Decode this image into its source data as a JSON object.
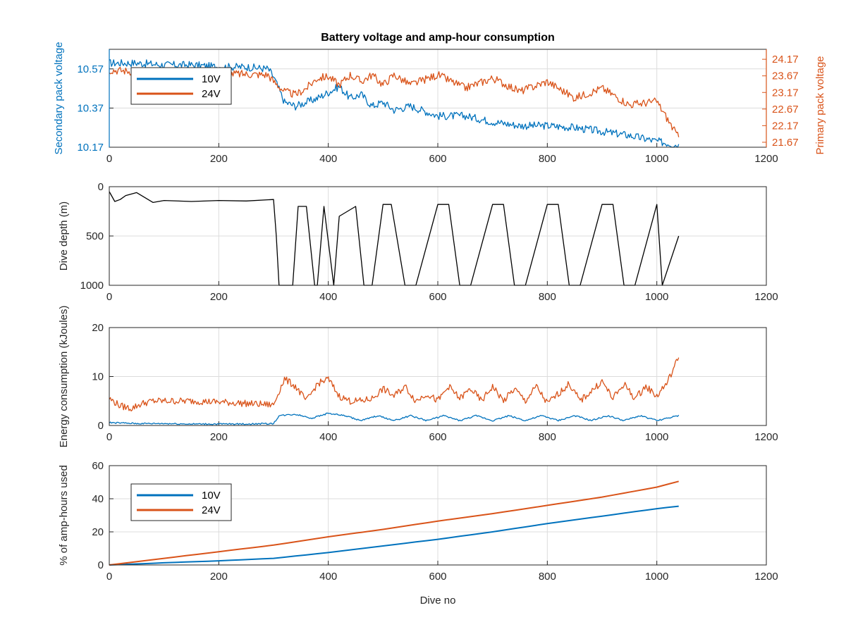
{
  "colors": {
    "c10v": "#0072BD",
    "c24v": "#D95319",
    "depth": "#000000",
    "axis": "#262626",
    "grid": "#dcdcdc"
  },
  "chart_data": [
    {
      "type": "line",
      "title": "Battery voltage and amp-hour consumption",
      "xlabel": "",
      "ylabel": "Secondary pack voltage",
      "ylabel_right": "Primary pack voltage",
      "xlim": [
        0,
        1200
      ],
      "ylim": [
        10.17,
        10.67
      ],
      "ylim_right": [
        21.52,
        24.47
      ],
      "xticks": [
        "0",
        "200",
        "400",
        "600",
        "800",
        "1000",
        "1200"
      ],
      "yticks": [
        "10.17",
        "10.37",
        "10.57"
      ],
      "yticks_right": [
        "21.67",
        "22.17",
        "22.67",
        "23.17",
        "23.67",
        "24.17"
      ],
      "grid": true,
      "legend": {
        "placement": "top-left",
        "entries": [
          "10V",
          "24V"
        ]
      },
      "series": [
        {
          "name": "10V",
          "axis": "left",
          "x": [
            0,
            50,
            100,
            150,
            200,
            250,
            290,
            300,
            320,
            340,
            360,
            380,
            400,
            420,
            440,
            460,
            480,
            500,
            520,
            550,
            600,
            650,
            700,
            750,
            800,
            850,
            900,
            950,
            1000,
            1040
          ],
          "values": [
            10.6,
            10.6,
            10.59,
            10.59,
            10.58,
            10.58,
            10.57,
            10.53,
            10.4,
            10.38,
            10.4,
            10.42,
            10.45,
            10.48,
            10.42,
            10.44,
            10.38,
            10.4,
            10.36,
            10.38,
            10.33,
            10.33,
            10.3,
            10.28,
            10.28,
            10.27,
            10.25,
            10.23,
            10.2,
            10.18
          ]
        },
        {
          "name": "24V",
          "axis": "right",
          "x": [
            0,
            50,
            100,
            150,
            200,
            250,
            290,
            300,
            320,
            340,
            360,
            380,
            400,
            420,
            440,
            460,
            480,
            500,
            520,
            550,
            600,
            650,
            700,
            750,
            800,
            850,
            900,
            950,
            1000,
            1040
          ],
          "values": [
            23.85,
            23.8,
            23.78,
            23.76,
            23.74,
            23.72,
            23.7,
            23.5,
            23.2,
            23.1,
            23.3,
            23.6,
            23.65,
            23.4,
            23.7,
            23.5,
            23.7,
            23.4,
            23.7,
            23.4,
            23.7,
            23.3,
            23.6,
            23.2,
            23.5,
            23.0,
            23.3,
            22.8,
            22.9,
            21.8
          ]
        }
      ]
    },
    {
      "type": "line",
      "xlabel": "",
      "ylabel": "Dive depth (m)",
      "xlim": [
        0,
        1200
      ],
      "ylim": [
        0,
        1000
      ],
      "y_reversed": true,
      "xticks": [
        "0",
        "200",
        "400",
        "600",
        "800",
        "1000",
        "1200"
      ],
      "yticks": [
        "0",
        "500",
        "1000"
      ],
      "grid": true,
      "series": [
        {
          "x": [
            0,
            10,
            20,
            30,
            50,
            80,
            100,
            150,
            200,
            250,
            300,
            305,
            310,
            315,
            335,
            345,
            360,
            375,
            380,
            392,
            410,
            420,
            450,
            465,
            480,
            500,
            515,
            540,
            560,
            600,
            620,
            640,
            660,
            700,
            720,
            740,
            760,
            800,
            820,
            840,
            860,
            900,
            920,
            940,
            960,
            1000,
            1010,
            1040
          ],
          "values": [
            50,
            150,
            130,
            90,
            60,
            160,
            140,
            150,
            140,
            145,
            130,
            500,
            1000,
            1000,
            1000,
            200,
            200,
            1000,
            1000,
            200,
            1000,
            300,
            200,
            1000,
            1000,
            180,
            180,
            1000,
            1000,
            180,
            180,
            1000,
            1000,
            180,
            180,
            1000,
            1000,
            180,
            180,
            1000,
            1000,
            180,
            180,
            1000,
            1000,
            180,
            1000,
            500
          ]
        }
      ]
    },
    {
      "type": "line",
      "xlabel": "",
      "ylabel": "Energy consumption (kJoules)",
      "xlim": [
        0,
        1200
      ],
      "ylim": [
        0,
        20
      ],
      "xticks": [
        "0",
        "200",
        "400",
        "600",
        "800",
        "1000",
        "1200"
      ],
      "yticks": [
        "0",
        "10",
        "20"
      ],
      "grid": true,
      "series": [
        {
          "name": "24V",
          "x": [
            0,
            20,
            40,
            60,
            80,
            100,
            150,
            200,
            250,
            300,
            310,
            320,
            340,
            360,
            380,
            400,
            420,
            440,
            460,
            480,
            500,
            520,
            540,
            560,
            580,
            600,
            620,
            640,
            660,
            680,
            700,
            720,
            740,
            760,
            780,
            800,
            820,
            840,
            860,
            880,
            900,
            920,
            940,
            960,
            980,
            1000,
            1020,
            1040
          ],
          "values": [
            5.5,
            4.0,
            3.5,
            4.5,
            5.0,
            5.0,
            5.0,
            4.8,
            4.5,
            4.2,
            7.0,
            9.5,
            8.0,
            5.0,
            8.5,
            9.5,
            6.0,
            5.0,
            5.0,
            5.5,
            7.5,
            6.0,
            8.0,
            5.0,
            6.5,
            5.0,
            8.0,
            5.5,
            7.5,
            5.0,
            8.0,
            5.0,
            7.5,
            5.0,
            8.0,
            4.5,
            6.5,
            8.5,
            5.0,
            7.0,
            9.0,
            5.5,
            8.5,
            5.5,
            8.0,
            6.0,
            9.0,
            14.0
          ]
        },
        {
          "name": "10V",
          "x": [
            0,
            50,
            100,
            150,
            200,
            250,
            300,
            310,
            340,
            370,
            400,
            430,
            460,
            490,
            520,
            550,
            580,
            610,
            640,
            670,
            700,
            730,
            760,
            790,
            820,
            850,
            880,
            910,
            940,
            970,
            1000,
            1040
          ],
          "values": [
            0.6,
            0.4,
            0.4,
            0.3,
            0.3,
            0.3,
            0.4,
            2.0,
            2.3,
            1.5,
            2.5,
            2.0,
            1.0,
            2.0,
            1.0,
            2.0,
            1.0,
            2.0,
            1.0,
            2.0,
            1.0,
            2.0,
            1.0,
            2.0,
            1.0,
            2.0,
            1.0,
            2.0,
            1.0,
            2.0,
            1.0,
            2.0
          ]
        }
      ]
    },
    {
      "type": "line",
      "xlabel": "Dive no",
      "ylabel": "% of amp-hours used",
      "xlim": [
        0,
        1200
      ],
      "ylim": [
        0,
        60
      ],
      "xticks": [
        "0",
        "200",
        "400",
        "600",
        "800",
        "1000",
        "1200"
      ],
      "yticks": [
        "0",
        "20",
        "40",
        "60"
      ],
      "grid": true,
      "legend": {
        "placement": "top-left",
        "entries": [
          "10V",
          "24V"
        ]
      },
      "series": [
        {
          "name": "10V",
          "x": [
            0,
            100,
            200,
            300,
            400,
            500,
            600,
            700,
            800,
            900,
            1000,
            1040
          ],
          "values": [
            0,
            1.3,
            2.5,
            4,
            7.5,
            11.5,
            15.5,
            20,
            25,
            29.5,
            34,
            35.5
          ]
        },
        {
          "name": "24V",
          "x": [
            0,
            100,
            200,
            300,
            400,
            500,
            600,
            700,
            800,
            900,
            1000,
            1040
          ],
          "values": [
            0,
            4,
            8,
            12,
            17,
            21.5,
            26.5,
            31,
            36,
            41,
            47,
            50.5
          ]
        }
      ]
    }
  ]
}
